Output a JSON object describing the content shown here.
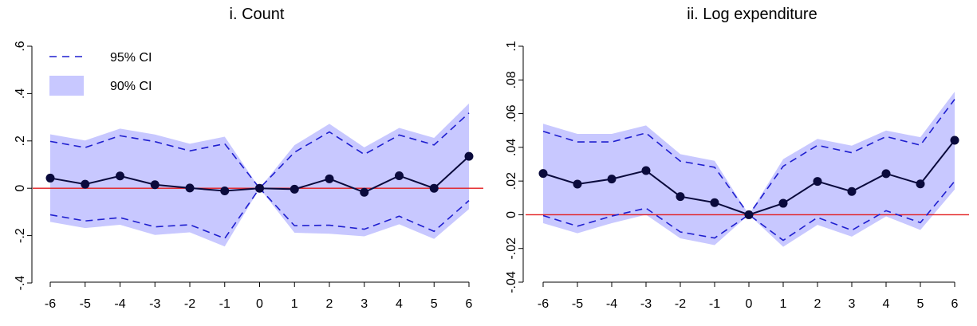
{
  "chart_data": [
    {
      "type": "line",
      "title": "i. Count",
      "xlabel": "",
      "ylabel": "",
      "x": [
        -6,
        -5,
        -4,
        -3,
        -2,
        -1,
        0,
        1,
        2,
        3,
        4,
        5,
        6
      ],
      "xticks": [
        "-6",
        "-5",
        "-4",
        "-3",
        "-2",
        "-1",
        "0",
        "1",
        "2",
        "3",
        "4",
        "5",
        "6"
      ],
      "yticks": [
        {
          "value": -0.4,
          "label": "-.4"
        },
        {
          "value": -0.2,
          "label": "-.2"
        },
        {
          "value": 0,
          "label": "0"
        },
        {
          "value": 0.2,
          "label": ".2"
        },
        {
          "value": 0.4,
          "label": ".4"
        },
        {
          "value": 0.6,
          "label": ".6"
        }
      ],
      "ylim": [
        -0.4,
        0.6
      ],
      "reference_line": 0,
      "series": [
        {
          "kind": "point_estimate",
          "values": [
            0.043,
            0.017,
            0.052,
            0.015,
            0.001,
            -0.011,
            0.0,
            -0.004,
            0.04,
            -0.017,
            0.053,
            0.0,
            0.135
          ]
        },
        {
          "kind": "ci95",
          "name": "95% CI",
          "upper": [
            0.198,
            0.172,
            0.222,
            0.197,
            0.158,
            0.188,
            0.0,
            0.152,
            0.238,
            0.143,
            0.225,
            0.183,
            0.318
          ],
          "lower": [
            -0.112,
            -0.138,
            -0.124,
            -0.163,
            -0.154,
            -0.212,
            0.0,
            -0.158,
            -0.156,
            -0.173,
            -0.118,
            -0.182,
            -0.052
          ]
        },
        {
          "kind": "ci90",
          "name": "90% CI",
          "upper": [
            0.228,
            0.202,
            0.252,
            0.227,
            0.188,
            0.218,
            0.0,
            0.182,
            0.272,
            0.173,
            0.255,
            0.213,
            0.358
          ],
          "lower": [
            -0.142,
            -0.168,
            -0.154,
            -0.197,
            -0.186,
            -0.246,
            0.0,
            -0.188,
            -0.192,
            -0.203,
            -0.152,
            -0.214,
            -0.088
          ]
        }
      ],
      "legend": [
        {
          "label": "95% CI",
          "style": "dashed"
        },
        {
          "label": "90% CI",
          "style": "band"
        }
      ],
      "legend_position": "top-left",
      "grid": false
    },
    {
      "type": "line",
      "title": "ii. Log expenditure",
      "xlabel": "",
      "ylabel": "",
      "x": [
        -6,
        -5,
        -4,
        -3,
        -2,
        -1,
        0,
        1,
        2,
        3,
        4,
        5,
        6
      ],
      "xticks": [
        "-6",
        "-5",
        "-4",
        "-3",
        "-2",
        "-1",
        "0",
        "1",
        "2",
        "3",
        "4",
        "5",
        "6"
      ],
      "yticks": [
        {
          "value": -0.04,
          "label": "-.04"
        },
        {
          "value": -0.02,
          "label": "-.02"
        },
        {
          "value": 0,
          "label": "0"
        },
        {
          "value": 0.02,
          "label": ".02"
        },
        {
          "value": 0.04,
          "label": ".04"
        },
        {
          "value": 0.06,
          "label": ".06"
        },
        {
          "value": 0.08,
          "label": ".08"
        },
        {
          "value": 0.1,
          "label": ".1"
        }
      ],
      "ylim": [
        -0.04,
        0.1
      ],
      "reference_line": 0,
      "series": [
        {
          "kind": "point_estimate",
          "values": [
            0.0245,
            0.0182,
            0.0212,
            0.0262,
            0.0108,
            0.0072,
            0.0,
            0.0068,
            0.0198,
            0.0138,
            0.0244,
            0.0183,
            0.0442
          ]
        },
        {
          "kind": "ci95",
          "upper": [
            0.0495,
            0.0432,
            0.0432,
            0.0485,
            0.0318,
            0.0282,
            0.0,
            0.0288,
            0.0412,
            0.0368,
            0.0464,
            0.0413,
            0.0685
          ],
          "lower": [
            -0.0005,
            -0.0068,
            -0.0008,
            0.0039,
            -0.0102,
            -0.0138,
            0.0,
            -0.0152,
            -0.0016,
            -0.0092,
            0.0024,
            -0.0047,
            0.0199
          ]
        },
        {
          "kind": "ci90",
          "upper": [
            0.054,
            0.048,
            0.048,
            0.053,
            0.036,
            0.032,
            0.0,
            0.033,
            0.045,
            0.041,
            0.05,
            0.046,
            0.073
          ],
          "lower": [
            -0.005,
            -0.011,
            -0.005,
            0.0,
            -0.014,
            -0.018,
            0.0,
            -0.019,
            -0.006,
            -0.013,
            -0.001,
            -0.009,
            0.015
          ]
        }
      ],
      "grid": false
    }
  ],
  "colors": {
    "band": "#c8c8ff",
    "ci_line": "#1f1fcf",
    "estimate": "#0a0a3c",
    "reference": "#e31a1c",
    "axis": "#000000"
  }
}
